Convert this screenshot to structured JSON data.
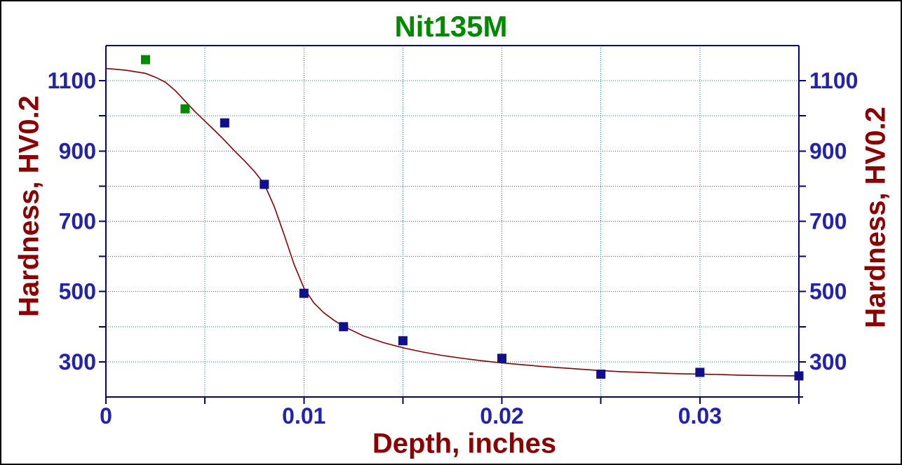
{
  "window": {
    "background": "#FFFFFF",
    "frame_color": "#000000"
  },
  "colors": {
    "title_text": "#008A00",
    "axis_title_text": "#8B0000",
    "tick_label_text": "#2222B2",
    "axis_line": "#000080",
    "grid_line": "#008080",
    "fit_curve": "#8B0000",
    "series_green": "#008A00",
    "series_blue": "#10108C"
  },
  "chart_data": {
    "type": "scatter",
    "title": "Nit135M",
    "xlabel": "Depth, inches",
    "ylabel_left": "Hardness, HV0.2",
    "ylabel_right": "Hardness, HV0.2",
    "xlim": [
      0,
      0.035
    ],
    "ylim": [
      200,
      1200
    ],
    "grid": {
      "style": "dotted",
      "x_lines": [
        0.005,
        0.01,
        0.015,
        0.02,
        0.025,
        0.03
      ],
      "y_lines": [
        300,
        400,
        500,
        600,
        700,
        800,
        900,
        1000,
        1100
      ]
    },
    "x_axis_ticks": [
      0,
      0.005,
      0.01,
      0.015,
      0.02,
      0.025,
      0.03,
      0.035
    ],
    "y_axis_ticks": [
      300,
      400,
      500,
      600,
      700,
      800,
      900,
      1000,
      1100
    ],
    "x_tick_labels": [
      {
        "value": 0,
        "label": "0"
      },
      {
        "value": 0.01,
        "label": "0.01"
      },
      {
        "value": 0.02,
        "label": "0.02"
      },
      {
        "value": 0.03,
        "label": "0.03"
      }
    ],
    "y_tick_labels": [
      {
        "value": 1100,
        "label": "1100"
      },
      {
        "value": 900,
        "label": "900"
      },
      {
        "value": 700,
        "label": "700"
      },
      {
        "value": 500,
        "label": "500"
      },
      {
        "value": 300,
        "label": "300"
      }
    ],
    "series": [
      {
        "name": "surface-points-green",
        "marker": "square",
        "color_key": "series_green",
        "points": [
          [
            0.002,
            1160
          ],
          [
            0.004,
            1020
          ]
        ]
      },
      {
        "name": "profile-points-blue",
        "marker": "square",
        "color_key": "series_blue",
        "points": [
          [
            0.006,
            980
          ],
          [
            0.008,
            805
          ],
          [
            0.01,
            495
          ],
          [
            0.012,
            400
          ],
          [
            0.015,
            360
          ],
          [
            0.02,
            310
          ],
          [
            0.025,
            265
          ],
          [
            0.03,
            270
          ],
          [
            0.035,
            260
          ]
        ]
      }
    ],
    "fit_curve": {
      "name": "fit-curve",
      "color_key": "fit_curve",
      "points": [
        [
          0,
          1135
        ],
        [
          0.001,
          1130
        ],
        [
          0.002,
          1121
        ],
        [
          0.0025,
          1110
        ],
        [
          0.003,
          1096
        ],
        [
          0.0035,
          1072
        ],
        [
          0.004,
          1042
        ],
        [
          0.0045,
          1012
        ],
        [
          0.005,
          985
        ],
        [
          0.0055,
          958
        ],
        [
          0.006,
          930
        ],
        [
          0.0065,
          900
        ],
        [
          0.007,
          872
        ],
        [
          0.0075,
          842
        ],
        [
          0.008,
          806
        ],
        [
          0.0085,
          742
        ],
        [
          0.009,
          662
        ],
        [
          0.0095,
          578
        ],
        [
          0.01,
          510
        ],
        [
          0.0105,
          468
        ],
        [
          0.011,
          440
        ],
        [
          0.0115,
          419
        ],
        [
          0.012,
          401
        ],
        [
          0.013,
          374
        ],
        [
          0.014,
          355
        ],
        [
          0.015,
          340
        ],
        [
          0.016,
          328
        ],
        [
          0.017,
          318
        ],
        [
          0.018,
          310
        ],
        [
          0.019,
          303
        ],
        [
          0.02,
          297
        ],
        [
          0.021,
          292
        ],
        [
          0.022,
          287
        ],
        [
          0.023,
          283
        ],
        [
          0.024,
          279
        ],
        [
          0.025,
          275
        ],
        [
          0.026,
          272
        ],
        [
          0.027,
          270
        ],
        [
          0.028,
          268
        ],
        [
          0.029,
          266
        ],
        [
          0.03,
          265
        ],
        [
          0.031,
          264
        ],
        [
          0.032,
          262
        ],
        [
          0.033,
          261
        ],
        [
          0.034,
          260.5
        ],
        [
          0.035,
          260
        ]
      ]
    }
  }
}
